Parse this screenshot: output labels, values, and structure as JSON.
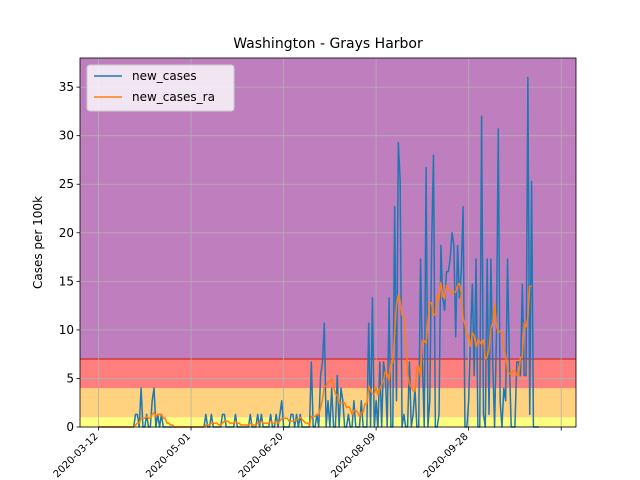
{
  "chart_data": {
    "type": "line",
    "title": "Washington - Grays Harbor",
    "xlabel": "",
    "ylabel": "Cases per 100k",
    "xlim": [
      "2020-03-02",
      "2020-11-25"
    ],
    "ylim": [
      0,
      38
    ],
    "yticks": [
      0,
      5,
      10,
      15,
      20,
      25,
      30,
      35
    ],
    "xticks": [
      "2020-03-12",
      "2020-05-01",
      "2020-06-20",
      "2020-08-09",
      "2020-09-28",
      "2020-11-17"
    ],
    "xtick_labels": [
      "2020-03-12",
      "2020-05-01",
      "2020-06-20",
      "2020-08-09",
      "2020-09-28",
      ""
    ],
    "grid": true,
    "legend": "upper-left",
    "bands": [
      {
        "from": 0,
        "to": 1,
        "color": "#ffff7f"
      },
      {
        "from": 1,
        "to": 4,
        "color": "#ffd27f"
      },
      {
        "from": 4,
        "to": 7,
        "color": "#ff7f7f"
      },
      {
        "from": 7,
        "to": 38,
        "color": "#bf7fbf"
      }
    ],
    "threshold_line": {
      "value": 7,
      "color": "#d62728"
    },
    "series": [
      {
        "name": "new_cases",
        "color": "#1f77b4",
        "start": "2020-03-12",
        "values": [
          0,
          0,
          0,
          0,
          0,
          0,
          0,
          0,
          0,
          0,
          0,
          0,
          0,
          0,
          0,
          0,
          0,
          0,
          0,
          0,
          1.3,
          1.3,
          0,
          4,
          0,
          0,
          1.3,
          0,
          0,
          2.7,
          4,
          0,
          1.3,
          0,
          1.3,
          0,
          0,
          0,
          0,
          0,
          0,
          0,
          0,
          0,
          0,
          0,
          0,
          0,
          0,
          0,
          0,
          0,
          0,
          0,
          0,
          0,
          0,
          0,
          1.3,
          0,
          0,
          1.3,
          0,
          0,
          0,
          0,
          0,
          1.3,
          1.3,
          0,
          0,
          0,
          0,
          0,
          1.3,
          0,
          0,
          0,
          0,
          0,
          0,
          0,
          1.3,
          0,
          0,
          0,
          1.3,
          0,
          1.3,
          0,
          0,
          0,
          0,
          1.3,
          0,
          0,
          1.3,
          0,
          1.3,
          2.7,
          0,
          0,
          0,
          0,
          1.3,
          1.3,
          0,
          1.3,
          0,
          1.3,
          0,
          0,
          0,
          0,
          0,
          6.7,
          0,
          0,
          1.3,
          0,
          5.3,
          6.7,
          10.7,
          0,
          2.7,
          0,
          4,
          0,
          0,
          5.3,
          0,
          4,
          2.7,
          0,
          0,
          1.3,
          0,
          0,
          2.7,
          0,
          0,
          0,
          2.7,
          0,
          0,
          0,
          10.7,
          0,
          13.3,
          0,
          2.7,
          0,
          6.7,
          0,
          6.7,
          5.3,
          0,
          13.3,
          0,
          0,
          22.7,
          2.7,
          29.3,
          25.3,
          0,
          1.3,
          0,
          0,
          6.7,
          0,
          1.3,
          4,
          0,
          0,
          17.3,
          6.7,
          0,
          26.7,
          0,
          2.7,
          18.7,
          28,
          0,
          0,
          1.3,
          18.7,
          13.3,
          12,
          16,
          16,
          17.3,
          20,
          18.7,
          9.3,
          18.7,
          13.3,
          16,
          22.7,
          0,
          0,
          2.7,
          9.3,
          14.7,
          5.3,
          17.3,
          0,
          0,
          32,
          1.3,
          0,
          17.3,
          1.3,
          17.3,
          6.7,
          0,
          9.3,
          30.7,
          2.7,
          0,
          4,
          2.7,
          17.3,
          6.7,
          0,
          0,
          0,
          6.7,
          6.7,
          5.3,
          14.7,
          5.3,
          5.3,
          36,
          1.3,
          25.3,
          0,
          0,
          0,
          0
        ]
      },
      {
        "name": "new_cases_ra",
        "color": "#ff7f0e",
        "start": "2020-03-12",
        "values": [
          0,
          0,
          0,
          0,
          0,
          0,
          0,
          0,
          0,
          0,
          0,
          0,
          0,
          0,
          0,
          0,
          0,
          0,
          0,
          0,
          0.2,
          0.4,
          0.4,
          0.9,
          0.9,
          0.9,
          1.1,
          0.9,
          0.9,
          1.3,
          1.5,
          1.1,
          1.3,
          1.3,
          1.3,
          0.9,
          0.9,
          0.4,
          0.4,
          0.2,
          0.2,
          0,
          0,
          0,
          0,
          0,
          0,
          0,
          0,
          0,
          0,
          0,
          0,
          0,
          0,
          0,
          0,
          0,
          0.2,
          0.2,
          0.2,
          0.4,
          0.4,
          0.4,
          0.4,
          0.2,
          0.2,
          0.4,
          0.6,
          0.6,
          0.6,
          0.4,
          0.4,
          0.4,
          0.6,
          0.4,
          0.4,
          0.2,
          0.2,
          0.2,
          0.2,
          0.2,
          0.4,
          0.2,
          0.2,
          0.2,
          0.4,
          0.4,
          0.6,
          0.4,
          0.4,
          0.4,
          0.4,
          0.6,
          0.4,
          0.4,
          0.6,
          0.4,
          0.6,
          0.9,
          0.9,
          0.9,
          0.9,
          0.6,
          0.6,
          0.6,
          0.6,
          0.8,
          0.8,
          1,
          0.8,
          0.6,
          0.4,
          0.4,
          0.2,
          1.1,
          1.1,
          1.1,
          1.3,
          1.3,
          2,
          2.8,
          4.2,
          4.2,
          4.6,
          4.6,
          5,
          4.2,
          3.4,
          3.3,
          2.5,
          2.5,
          2.5,
          2.5,
          2,
          2.1,
          1.9,
          1.3,
          1.7,
          1.7,
          1.5,
          1.1,
          1.5,
          1.5,
          2.4,
          2.4,
          4.2,
          3.8,
          3.4,
          3.4,
          4.1,
          3.3,
          3.9,
          4.4,
          4.8,
          5.7,
          5.5,
          4.8,
          6.6,
          6.6,
          9.5,
          12.6,
          13.6,
          13,
          11.5,
          11.5,
          8.9,
          5.5,
          4.4,
          4.1,
          3.7,
          3.7,
          6,
          6.3,
          5.2,
          8.9,
          8.9,
          8.6,
          10.9,
          12.8,
          12.8,
          11.5,
          11.6,
          13.6,
          13.1,
          14.9,
          13.5,
          13.2,
          14.6,
          14.2,
          14.1,
          13.7,
          13.9,
          13.9,
          14.6,
          14.8,
          13.8,
          11.2,
          10.6,
          9.3,
          9.4,
          8.3,
          9.7,
          9.4,
          8.2,
          9,
          8.8,
          8.5,
          9,
          7,
          7.2,
          8,
          10.1,
          10.6,
          12.8,
          10.5,
          9.7,
          9.9,
          9.8,
          8.2,
          7.4,
          5.8,
          5.5,
          5.5,
          5.8,
          5.8,
          5.3,
          5.3,
          7.2,
          7.2,
          10.7,
          10.3,
          11.3,
          14.5,
          14.5
        ]
      }
    ]
  }
}
